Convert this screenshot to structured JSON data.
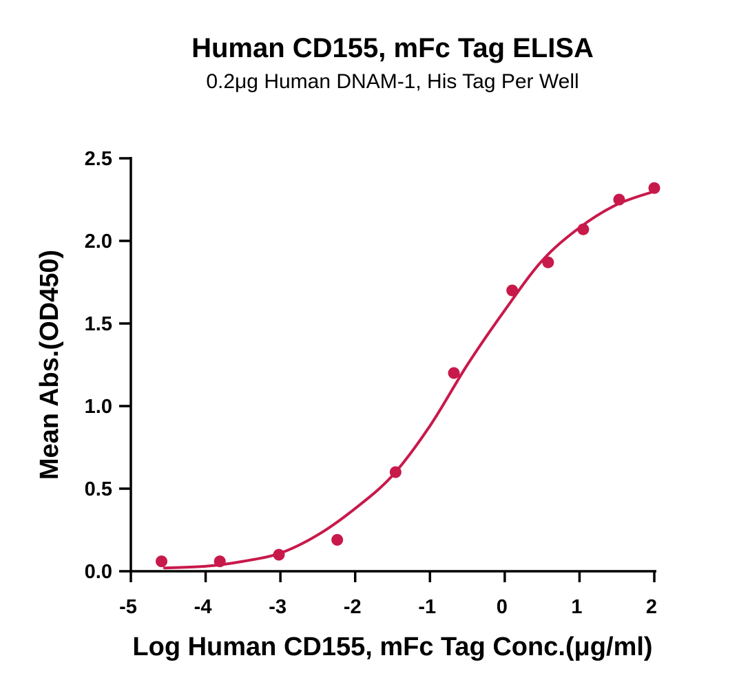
{
  "chart_data": {
    "type": "scatter",
    "title": "Human CD155, mFc Tag ELISA",
    "subtitle": "0.2μg Human DNAM-1, His Tag Per Well",
    "xlabel": "Log Human CD155, mFc Tag Conc.(μg/ml)",
    "ylabel": "Mean Abs.(OD450)",
    "xlim": [
      -5,
      2
    ],
    "ylim": [
      0,
      2.5
    ],
    "xticks": [
      "-5",
      "-4",
      "-3",
      "-2",
      "-1",
      "0",
      "1",
      "2"
    ],
    "yticks": [
      "0.0",
      "0.5",
      "1.0",
      "1.5",
      "2.0",
      "2.5"
    ],
    "grid": false,
    "color": "#c8194b",
    "series": [
      {
        "points": [
          {
            "x": -4.59,
            "y": 0.06
          },
          {
            "x": -3.81,
            "y": 0.06
          },
          {
            "x": -3.02,
            "y": 0.1
          },
          {
            "x": -2.24,
            "y": 0.19
          },
          {
            "x": -1.46,
            "y": 0.6
          },
          {
            "x": -0.68,
            "y": 1.2
          },
          {
            "x": 0.1,
            "y": 1.7
          },
          {
            "x": 0.58,
            "y": 1.87
          },
          {
            "x": 1.05,
            "y": 2.07
          },
          {
            "x": 1.53,
            "y": 2.25
          },
          {
            "x": 2.0,
            "y": 2.32
          }
        ],
        "fit_curve": [
          {
            "x": -4.55,
            "y": 0.02
          },
          {
            "x": -4.0,
            "y": 0.03
          },
          {
            "x": -3.5,
            "y": 0.06
          },
          {
            "x": -3.0,
            "y": 0.11
          },
          {
            "x": -2.5,
            "y": 0.22
          },
          {
            "x": -2.0,
            "y": 0.38
          },
          {
            "x": -1.5,
            "y": 0.58
          },
          {
            "x": -1.0,
            "y": 0.88
          },
          {
            "x": -0.5,
            "y": 1.25
          },
          {
            "x": 0.0,
            "y": 1.58
          },
          {
            "x": 0.5,
            "y": 1.88
          },
          {
            "x": 1.0,
            "y": 2.08
          },
          {
            "x": 1.5,
            "y": 2.22
          },
          {
            "x": 2.0,
            "y": 2.3
          }
        ]
      }
    ]
  }
}
